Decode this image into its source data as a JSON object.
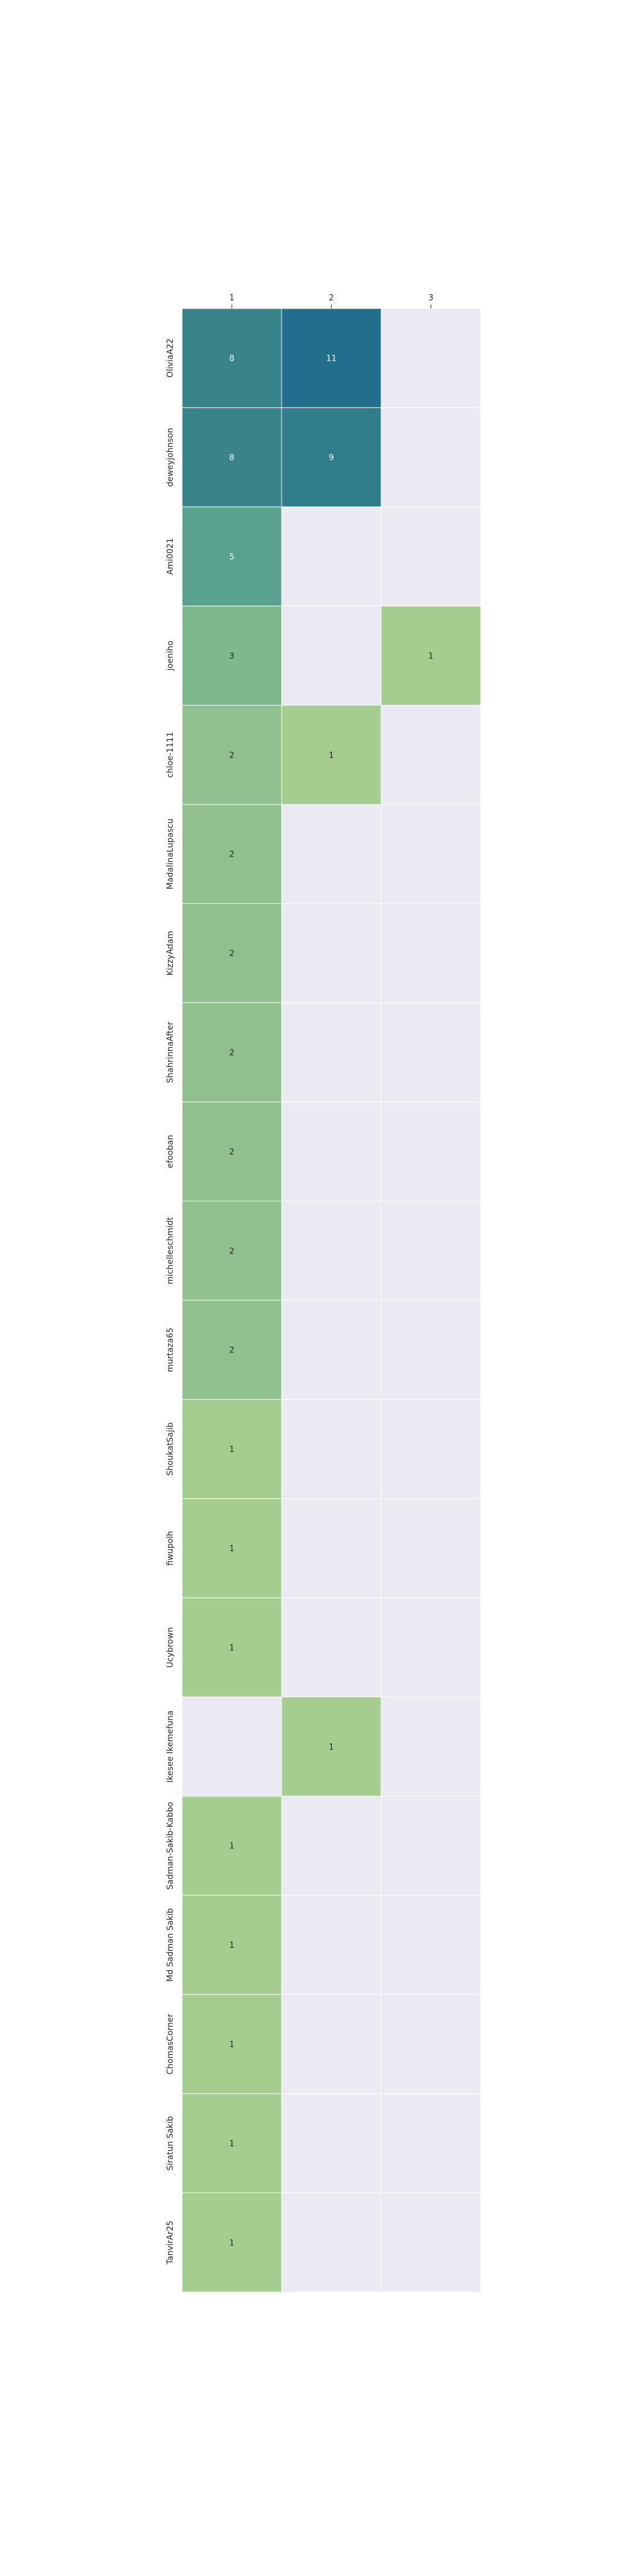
{
  "chart_data": {
    "type": "heatmap",
    "title": "",
    "xlabel": "",
    "ylabel": "",
    "x_categories": [
      "1",
      "2",
      "3"
    ],
    "y_categories": [
      "OliviaA22",
      "deweyjohnson",
      "Ami0021",
      "joeniho",
      "chloe-1111",
      "MadalinaLupascu",
      "KizzyAdam",
      "ShahrinnaAfter",
      "efooban",
      "michelleschmidt",
      "murtaza65",
      "ShoukatSajib",
      "fiwupolh",
      "Ucybrown",
      "Ikesee Ikemefuna",
      "Sadman-Sakib-Kabbo",
      "Md Sadman Sakib",
      "ChomasCorner",
      "Siratun Sakib",
      "TanvirAr25"
    ],
    "values": [
      [
        8,
        11,
        null
      ],
      [
        8,
        9,
        null
      ],
      [
        5,
        null,
        null
      ],
      [
        3,
        null,
        1
      ],
      [
        2,
        1,
        null
      ],
      [
        2,
        null,
        null
      ],
      [
        2,
        null,
        null
      ],
      [
        2,
        null,
        null
      ],
      [
        2,
        null,
        null
      ],
      [
        2,
        null,
        null
      ],
      [
        2,
        null,
        null
      ],
      [
        1,
        null,
        null
      ],
      [
        1,
        null,
        null
      ],
      [
        1,
        null,
        null
      ],
      [
        null,
        1,
        null
      ],
      [
        1,
        null,
        null
      ],
      [
        1,
        null,
        null
      ],
      [
        1,
        null,
        null
      ],
      [
        1,
        null,
        null
      ],
      [
        1,
        null,
        null
      ]
    ],
    "value_range": [
      1,
      11
    ],
    "colormap": "crest",
    "colors": {
      "empty": "#eaeaf2",
      "grid": "#ffffff",
      "low": "#a5cd90",
      "high": "#226e8c",
      "text_dark": "#262626",
      "text_light": "#ffffff"
    },
    "grid": true,
    "legend": "none"
  }
}
